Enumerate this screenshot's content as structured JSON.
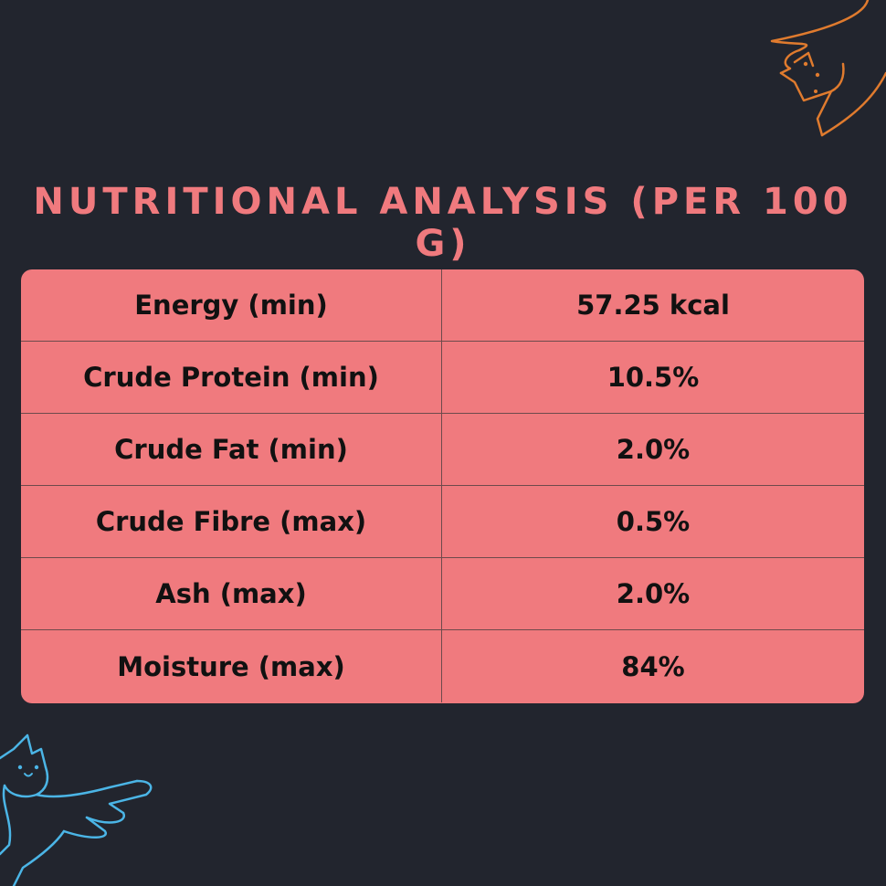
{
  "title": "Nutritional Analysis (per 100 g)",
  "colors": {
    "background": "#22252e",
    "accent": "#f07a7e",
    "cat_top": "#e07b2e",
    "cat_bottom": "#4bb5e6"
  },
  "decorations": {
    "top_right": "orange-line-cat-icon",
    "bottom_left": "blue-line-cat-icon"
  },
  "table": {
    "rows": [
      {
        "label": "Energy (min)",
        "value": "57.25 kcal"
      },
      {
        "label": "Crude Protein (min)",
        "value": "10.5%"
      },
      {
        "label": "Crude Fat (min)",
        "value": "2.0%"
      },
      {
        "label": "Crude Fibre (max)",
        "value": "0.5%"
      },
      {
        "label": "Ash (max)",
        "value": "2.0%"
      },
      {
        "label": "Moisture (max)",
        "value": "84%"
      }
    ]
  }
}
